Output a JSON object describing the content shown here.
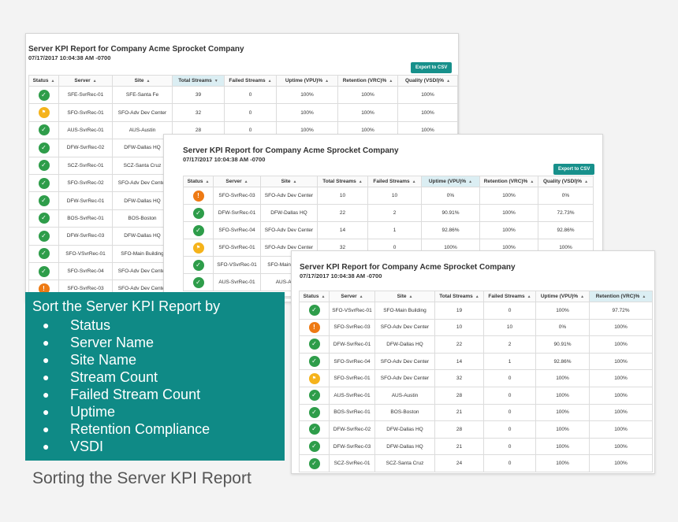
{
  "columns": [
    "Status",
    "Server",
    "Site",
    "Total Streams",
    "Failed Streams",
    "Uptime (VPU)%",
    "Retention (VRC)%",
    "Quality (VSDI)%"
  ],
  "reports": [
    {
      "title": "Server KPI Report for Company Acme Sprocket Company",
      "timestamp": "07/17/2017 10:04:38 AM -0700",
      "export_label": "Export to CSV",
      "sorted_column": "Total Streams",
      "rows": [
        {
          "status": "ok",
          "server": "SFE-SvrRec-01",
          "site": "SFE-Santa Fe",
          "total": "39",
          "failed": "0",
          "uptime": "100%",
          "retention": "100%",
          "quality": "100%"
        },
        {
          "status": "warn",
          "server": "SFO-SvrRec-01",
          "site": "SFO-Adv Dev Center",
          "total": "32",
          "failed": "0",
          "uptime": "100%",
          "retention": "100%",
          "quality": "100%"
        },
        {
          "status": "ok",
          "server": "AUS-SvrRec-01",
          "site": "AUS-Austin",
          "total": "28",
          "failed": "0",
          "uptime": "100%",
          "retention": "100%",
          "quality": "100%"
        },
        {
          "status": "ok",
          "server": "DFW-SvrRec-02",
          "site": "DFW-Dallas HQ",
          "total": "",
          "failed": "",
          "uptime": "",
          "retention": "",
          "quality": ""
        },
        {
          "status": "ok",
          "server": "SCZ-SvrRec-01",
          "site": "SCZ-Santa Cruz",
          "total": "",
          "failed": "",
          "uptime": "",
          "retention": "",
          "quality": ""
        },
        {
          "status": "ok",
          "server": "SFO-SvrRec-02",
          "site": "SFO-Adv Dev Center",
          "total": "",
          "failed": "",
          "uptime": "",
          "retention": "",
          "quality": ""
        },
        {
          "status": "ok",
          "server": "DFW-SvrRec-01",
          "site": "DFW-Dallas HQ",
          "total": "",
          "failed": "",
          "uptime": "",
          "retention": "",
          "quality": ""
        },
        {
          "status": "ok",
          "server": "BOS-SvrRec-01",
          "site": "BOS-Boston",
          "total": "",
          "failed": "",
          "uptime": "",
          "retention": "",
          "quality": ""
        },
        {
          "status": "ok",
          "server": "DFW-SvrRec-03",
          "site": "DFW-Dallas HQ",
          "total": "",
          "failed": "",
          "uptime": "",
          "retention": "",
          "quality": ""
        },
        {
          "status": "ok",
          "server": "SFO-VSvrRec-01",
          "site": "SFO-Main Building",
          "total": "",
          "failed": "",
          "uptime": "",
          "retention": "",
          "quality": ""
        },
        {
          "status": "ok",
          "server": "SFO-SvrRec-04",
          "site": "SFO-Adv Dev Center",
          "total": "",
          "failed": "",
          "uptime": "",
          "retention": "",
          "quality": ""
        },
        {
          "status": "err",
          "server": "SFO-SvrRec-03",
          "site": "SFO-Adv Dev Center",
          "total": "",
          "failed": "",
          "uptime": "",
          "retention": "",
          "quality": ""
        }
      ]
    },
    {
      "title": "Server KPI Report for Company Acme Sprocket Company",
      "timestamp": "07/17/2017 10:04:38 AM -0700",
      "export_label": "Export to CSV",
      "sorted_column": "Uptime (VPU)%",
      "rows": [
        {
          "status": "err",
          "server": "SFO-SvrRec-03",
          "site": "SFO-Adv Dev Center",
          "total": "10",
          "failed": "10",
          "uptime": "0%",
          "retention": "100%",
          "quality": "0%"
        },
        {
          "status": "ok",
          "server": "DFW-SvrRec-01",
          "site": "DFW-Dallas HQ",
          "total": "22",
          "failed": "2",
          "uptime": "90.91%",
          "retention": "100%",
          "quality": "72.73%"
        },
        {
          "status": "ok",
          "server": "SFO-SvrRec-04",
          "site": "SFO-Adv Dev Center",
          "total": "14",
          "failed": "1",
          "uptime": "92.86%",
          "retention": "100%",
          "quality": "92.86%"
        },
        {
          "status": "warn",
          "server": "SFO-SvrRec-01",
          "site": "SFO-Adv Dev Center",
          "total": "32",
          "failed": "0",
          "uptime": "100%",
          "retention": "100%",
          "quality": "100%"
        },
        {
          "status": "ok",
          "server": "SFO-VSvrRec-01",
          "site": "SFO-Main Building",
          "total": "",
          "failed": "",
          "uptime": "",
          "retention": "",
          "quality": ""
        },
        {
          "status": "ok",
          "server": "AUS-SvrRec-01",
          "site": "AUS-Austin",
          "total": "",
          "failed": "",
          "uptime": "",
          "retention": "",
          "quality": ""
        }
      ]
    },
    {
      "title": "Server KPI Report for Company Acme Sprocket Company",
      "timestamp": "07/17/2017 10:04:38 AM -0700",
      "export_label": "",
      "sorted_column": "Retention (VRC)%",
      "rows": [
        {
          "status": "ok",
          "server": "SFO-VSvrRec-01",
          "site": "SFO-Main Building",
          "total": "19",
          "failed": "0",
          "uptime": "100%",
          "retention": "97.72%",
          "quality": ""
        },
        {
          "status": "err",
          "server": "SFO-SvrRec-03",
          "site": "SFO-Adv Dev Center",
          "total": "10",
          "failed": "10",
          "uptime": "0%",
          "retention": "100%",
          "quality": ""
        },
        {
          "status": "ok",
          "server": "DFW-SvrRec-01",
          "site": "DFW-Dallas HQ",
          "total": "22",
          "failed": "2",
          "uptime": "90.91%",
          "retention": "100%",
          "quality": ""
        },
        {
          "status": "ok",
          "server": "SFO-SvrRec-04",
          "site": "SFO-Adv Dev Center",
          "total": "14",
          "failed": "1",
          "uptime": "92.86%",
          "retention": "100%",
          "quality": ""
        },
        {
          "status": "warn",
          "server": "SFO-SvrRec-01",
          "site": "SFO-Adv Dev Center",
          "total": "32",
          "failed": "0",
          "uptime": "100%",
          "retention": "100%",
          "quality": ""
        },
        {
          "status": "ok",
          "server": "AUS-SvrRec-01",
          "site": "AUS-Austin",
          "total": "28",
          "failed": "0",
          "uptime": "100%",
          "retention": "100%",
          "quality": ""
        },
        {
          "status": "ok",
          "server": "BOS-SvrRec-01",
          "site": "BOS-Boston",
          "total": "21",
          "failed": "0",
          "uptime": "100%",
          "retention": "100%",
          "quality": ""
        },
        {
          "status": "ok",
          "server": "DFW-SvrRec-02",
          "site": "DFW-Dallas HQ",
          "total": "28",
          "failed": "0",
          "uptime": "100%",
          "retention": "100%",
          "quality": ""
        },
        {
          "status": "ok",
          "server": "DFW-SvrRec-03",
          "site": "DFW-Dallas HQ",
          "total": "21",
          "failed": "0",
          "uptime": "100%",
          "retention": "100%",
          "quality": ""
        },
        {
          "status": "ok",
          "server": "SCZ-SvrRec-01",
          "site": "SCZ-Santa Cruz",
          "total": "24",
          "failed": "0",
          "uptime": "100%",
          "retention": "100%",
          "quality": ""
        }
      ]
    }
  ],
  "sort_box": {
    "heading": "Sort the Server KPI Report by",
    "items": [
      "Status",
      "Server Name",
      "Site Name",
      "Stream Count",
      "Failed Stream Count",
      "Uptime",
      "Retention Compliance",
      "VSDI"
    ]
  },
  "caption": "Sorting the Server KPI Report",
  "colors": {
    "teal": "#0f8a86",
    "ok": "#2e9d4a",
    "warn": "#f5b31b",
    "err": "#ee7a14"
  }
}
